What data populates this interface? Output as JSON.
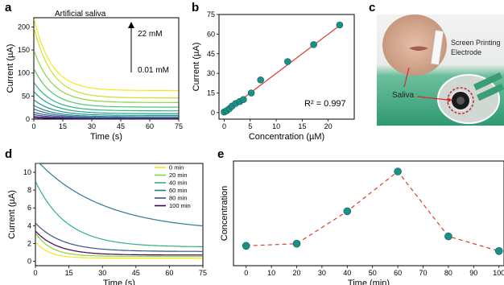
{
  "colors": {
    "line_fit": "#d33a2c",
    "marker": "#1c8f86",
    "dash": "#e03b2c"
  },
  "panels": {
    "a": {
      "letter": "a",
      "annotation_top": "22 mM",
      "annotation_bottom": "0.01 mM",
      "title": "Artificial saliva"
    },
    "b": {
      "letter": "b",
      "r2": "R² = 0.997"
    },
    "c": {
      "letter": "c",
      "label_device": "Screen Printing Electrode",
      "label_device_line1": "Screen Printing",
      "label_device_line2": "Electrode",
      "label_saliva": "Saliva"
    },
    "d": {
      "letter": "d"
    },
    "e": {
      "letter": "e"
    }
  },
  "chart_data": [
    {
      "panel": "a",
      "type": "line",
      "title": "Artificial saliva",
      "xlabel": "Time (s)",
      "ylabel": "Current (µA)",
      "xlim": [
        0,
        75
      ],
      "ylim": [
        0,
        220
      ],
      "xticks": [
        0,
        15,
        30,
        45,
        60,
        75
      ],
      "yticks": [
        0,
        50,
        100,
        150,
        200
      ],
      "series": [
        {
          "color": "#f5e51b",
          "start": 220,
          "end": 62
        },
        {
          "color": "#c9e02a",
          "start": 200,
          "end": 46
        },
        {
          "color": "#86d547",
          "start": 150,
          "end": 36
        },
        {
          "color": "#55c667",
          "start": 110,
          "end": 26
        },
        {
          "color": "#2eb37c",
          "start": 80,
          "end": 18
        },
        {
          "color": "#21a585",
          "start": 60,
          "end": 12
        },
        {
          "color": "#1f948c",
          "start": 42,
          "end": 8
        },
        {
          "color": "#26828e",
          "start": 30,
          "end": 5
        },
        {
          "color": "#2d708e",
          "start": 22,
          "end": 3
        },
        {
          "color": "#365c8d",
          "start": 15,
          "end": 2
        },
        {
          "color": "#404688",
          "start": 10,
          "end": 1
        },
        {
          "color": "#472d7b",
          "start": 6,
          "end": 0.5
        },
        {
          "color": "#440154",
          "start": 3,
          "end": 0.2
        }
      ]
    },
    {
      "panel": "b",
      "type": "scatter",
      "xlabel": "Concentration (µM)",
      "ylabel": "Current (µA)",
      "xlim": [
        -1,
        25
      ],
      "ylim": [
        -5,
        75
      ],
      "xticks": [
        0,
        5,
        10,
        15,
        20
      ],
      "yticks": [
        0,
        15,
        30,
        45,
        60,
        75
      ],
      "x": [
        0.01,
        0.5,
        1,
        1.5,
        2.2,
        3,
        3.7,
        5.2,
        7,
        12.2,
        17.2,
        22.2
      ],
      "y": [
        0.5,
        1.5,
        3,
        5,
        7,
        8.5,
        10,
        15,
        25,
        39,
        52,
        67
      ],
      "fit": {
        "x": [
          0,
          22.5
        ],
        "y": [
          0,
          67.5
        ]
      },
      "annotation": "R² = 0.997"
    },
    {
      "panel": "d",
      "type": "line",
      "xlabel": "Time (s)",
      "ylabel": "Current (µA)",
      "xlim": [
        0,
        75
      ],
      "ylim": [
        -0.5,
        11
      ],
      "xticks": [
        0,
        15,
        30,
        45,
        60,
        75
      ],
      "yticks": [
        0,
        2,
        4,
        6,
        8,
        10
      ],
      "series": [
        {
          "name": "0 min",
          "color": "#f5e51b",
          "start": 2.2,
          "end": 0.35
        },
        {
          "name": "20 min",
          "color": "#86d547",
          "start": 3.2,
          "end": 0.55
        },
        {
          "name": "40 min",
          "color": "#2eb37c",
          "start": 9.0,
          "end": 1.6
        },
        {
          "name": "60 min",
          "color": "#2b7a8c",
          "start": 11.5,
          "end": 3.3
        },
        {
          "name": "80 min",
          "color": "#3b518b",
          "start": 4.3,
          "end": 1.1
        },
        {
          "name": "100 min",
          "color": "#440154",
          "start": 3.4,
          "end": 0.7
        }
      ]
    },
    {
      "panel": "e",
      "type": "line",
      "xlabel": "Time (min)",
      "ylabel": "Concentration",
      "xlim": [
        -5,
        102
      ],
      "ylim": [
        0,
        1
      ],
      "xticks": [
        0,
        10,
        20,
        30,
        40,
        50,
        60,
        70,
        80,
        90,
        100
      ],
      "x": [
        0,
        20,
        40,
        60,
        80,
        100
      ],
      "y": [
        0.19,
        0.21,
        0.52,
        0.9,
        0.28,
        0.14
      ]
    }
  ]
}
